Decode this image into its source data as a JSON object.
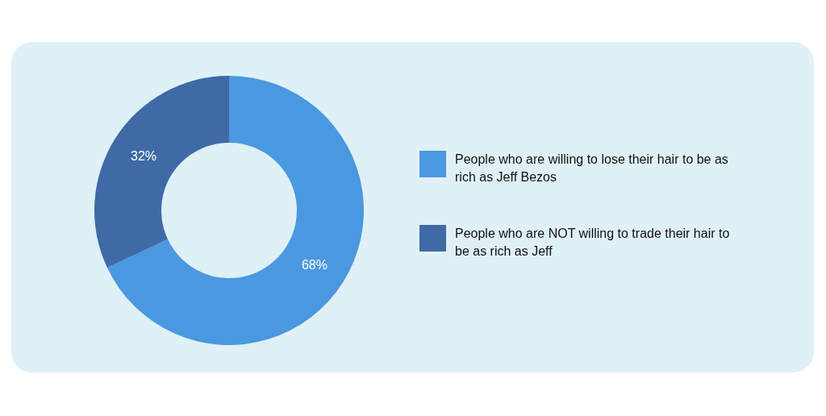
{
  "chart_data": {
    "type": "donut",
    "categories": [
      "People who are willing to lose their hair to be as rich as Jeff Bezos",
      "People who are NOT willing to trade their hair to be as rich as Jeff"
    ],
    "values": [
      68,
      32
    ],
    "colors": [
      "#4a98e0",
      "#3f6aa6"
    ],
    "value_labels": [
      "68%",
      "32%"
    ],
    "legend": "right"
  }
}
